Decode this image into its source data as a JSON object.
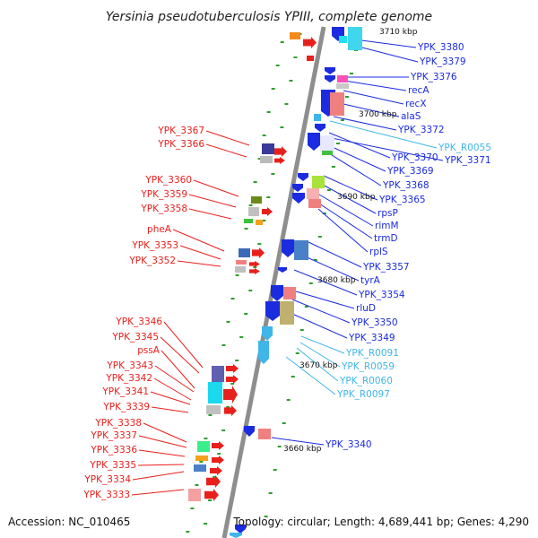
{
  "title": "Yersinia pseudotuberculosis YPIII, complete genome",
  "footer": {
    "accession": "Accession: NC_010465",
    "topology": "Topology: circular; Length: 4,689,441 bp; Genes: 4,290"
  },
  "colors": {
    "forward": "#e8201c",
    "reverse": "#1a2be0",
    "rna": "#3fb6e8",
    "backbone": "#909090",
    "tick": "#2e9e2e"
  },
  "positions": [
    "3710 kbp",
    "3700 kbp",
    "3690 kbp",
    "3680 kbp",
    "3670 kbp",
    "3660 kbp"
  ],
  "left_labels": [
    "YPK_3367",
    "YPK_3366",
    "YPK_3360",
    "YPK_3359",
    "YPK_3358",
    "pheA",
    "YPK_3353",
    "YPK_3352",
    "YPK_3346",
    "YPK_3345",
    "pssA",
    "YPK_3343",
    "YPK_3342",
    "YPK_3341",
    "YPK_3339",
    "YPK_3338",
    "YPK_3337",
    "YPK_3336",
    "YPK_3335",
    "YPK_3334",
    "YPK_3333"
  ],
  "right_labels": [
    "YPK_3380",
    "YPK_3379",
    "YPK_3376",
    "recA",
    "recX",
    "alaS",
    "YPK_3372",
    "YPK_R0055",
    "YPK_3370",
    "YPK_3371",
    "YPK_3369",
    "YPK_3368",
    "YPK_3365",
    "rpsP",
    "rimM",
    "trmD",
    "rplS",
    "YPK_3357",
    "tyrA",
    "YPK_3354",
    "rluD",
    "YPK_3350",
    "YPK_3349",
    "YPK_R0091",
    "YPK_R0059",
    "YPK_R0060",
    "YPK_R0097",
    "YPK_3340"
  ]
}
